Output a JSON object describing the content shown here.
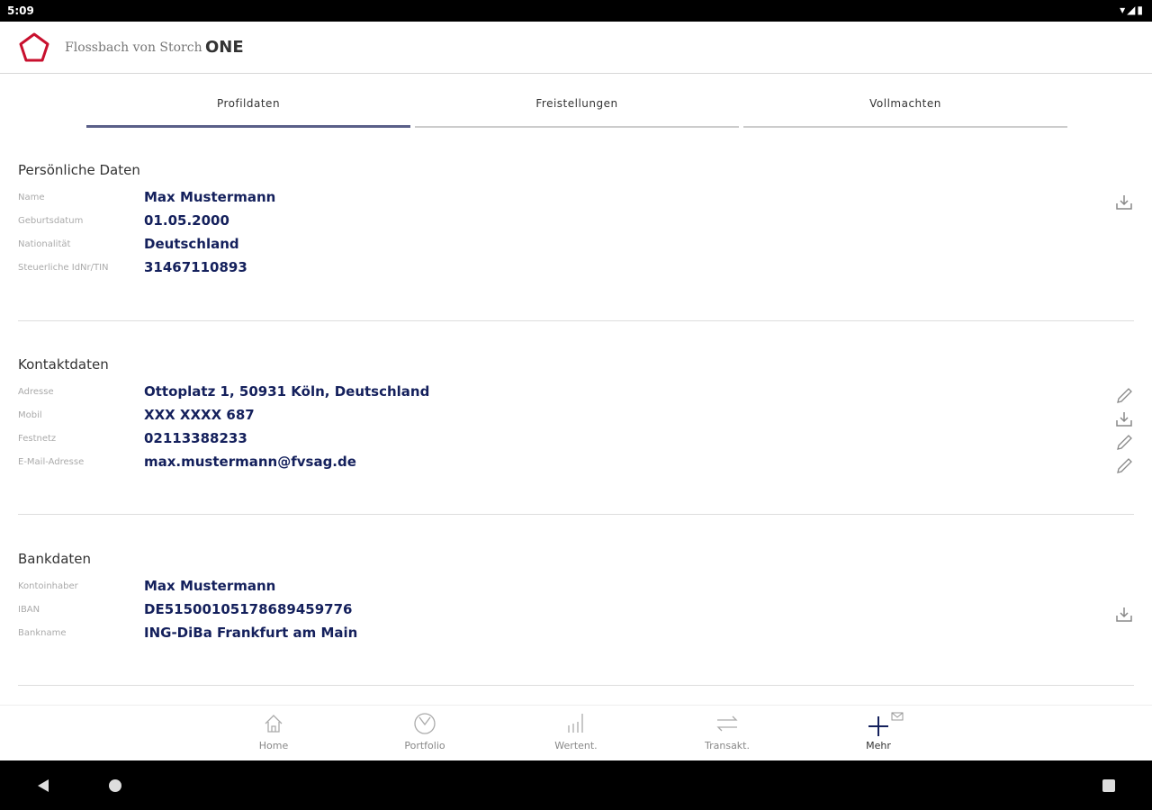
{
  "status": {
    "time": "5:09"
  },
  "app": {
    "brand": "Flossbach von Storch",
    "product": "ONE"
  },
  "tabs": [
    {
      "label": "Profildaten",
      "active": true
    },
    {
      "label": "Freistellungen"
    },
    {
      "label": "Vollmachten"
    }
  ],
  "personal": {
    "title": "Persönliche Daten",
    "rows": [
      {
        "label": "Name",
        "value": "Max Mustermann"
      },
      {
        "label": "Geburtsdatum",
        "value": "01.05.2000"
      },
      {
        "label": "Nationalität",
        "value": "Deutschland"
      },
      {
        "label": "Steuerliche IdNr/TIN",
        "value": "31467110893"
      }
    ]
  },
  "contact": {
    "title": "Kontaktdaten",
    "rows": [
      {
        "label": "Adresse",
        "value": "Ottoplatz 1, 50931 Köln, Deutschland"
      },
      {
        "label": "Mobil",
        "value": "XXX XXXX 687"
      },
      {
        "label": "Festnetz",
        "value": "02113388233"
      },
      {
        "label": "E-Mail-Adresse",
        "value": "max.mustermann@fvsag.de"
      }
    ]
  },
  "bank": {
    "title": "Bankdaten",
    "rows": [
      {
        "label": "Kontoinhaber",
        "value": "Max Mustermann"
      },
      {
        "label": "IBAN",
        "value": "DE51500105178689459776"
      },
      {
        "label": "Bankname",
        "value": "ING-DiBa Frankfurt am Main"
      }
    ]
  },
  "nav": [
    {
      "label": "Home",
      "icon": "home-icon"
    },
    {
      "label": "Portfolio",
      "icon": "portfolio-icon"
    },
    {
      "label": "Wertent.",
      "icon": "chart-icon"
    },
    {
      "label": "Transakt.",
      "icon": "transfer-icon"
    },
    {
      "label": "Mehr",
      "icon": "plus-icon",
      "active": true
    }
  ],
  "colors": {
    "value": "#14205c",
    "logo": "#c8102e",
    "tab_active": "#5a5f88"
  }
}
